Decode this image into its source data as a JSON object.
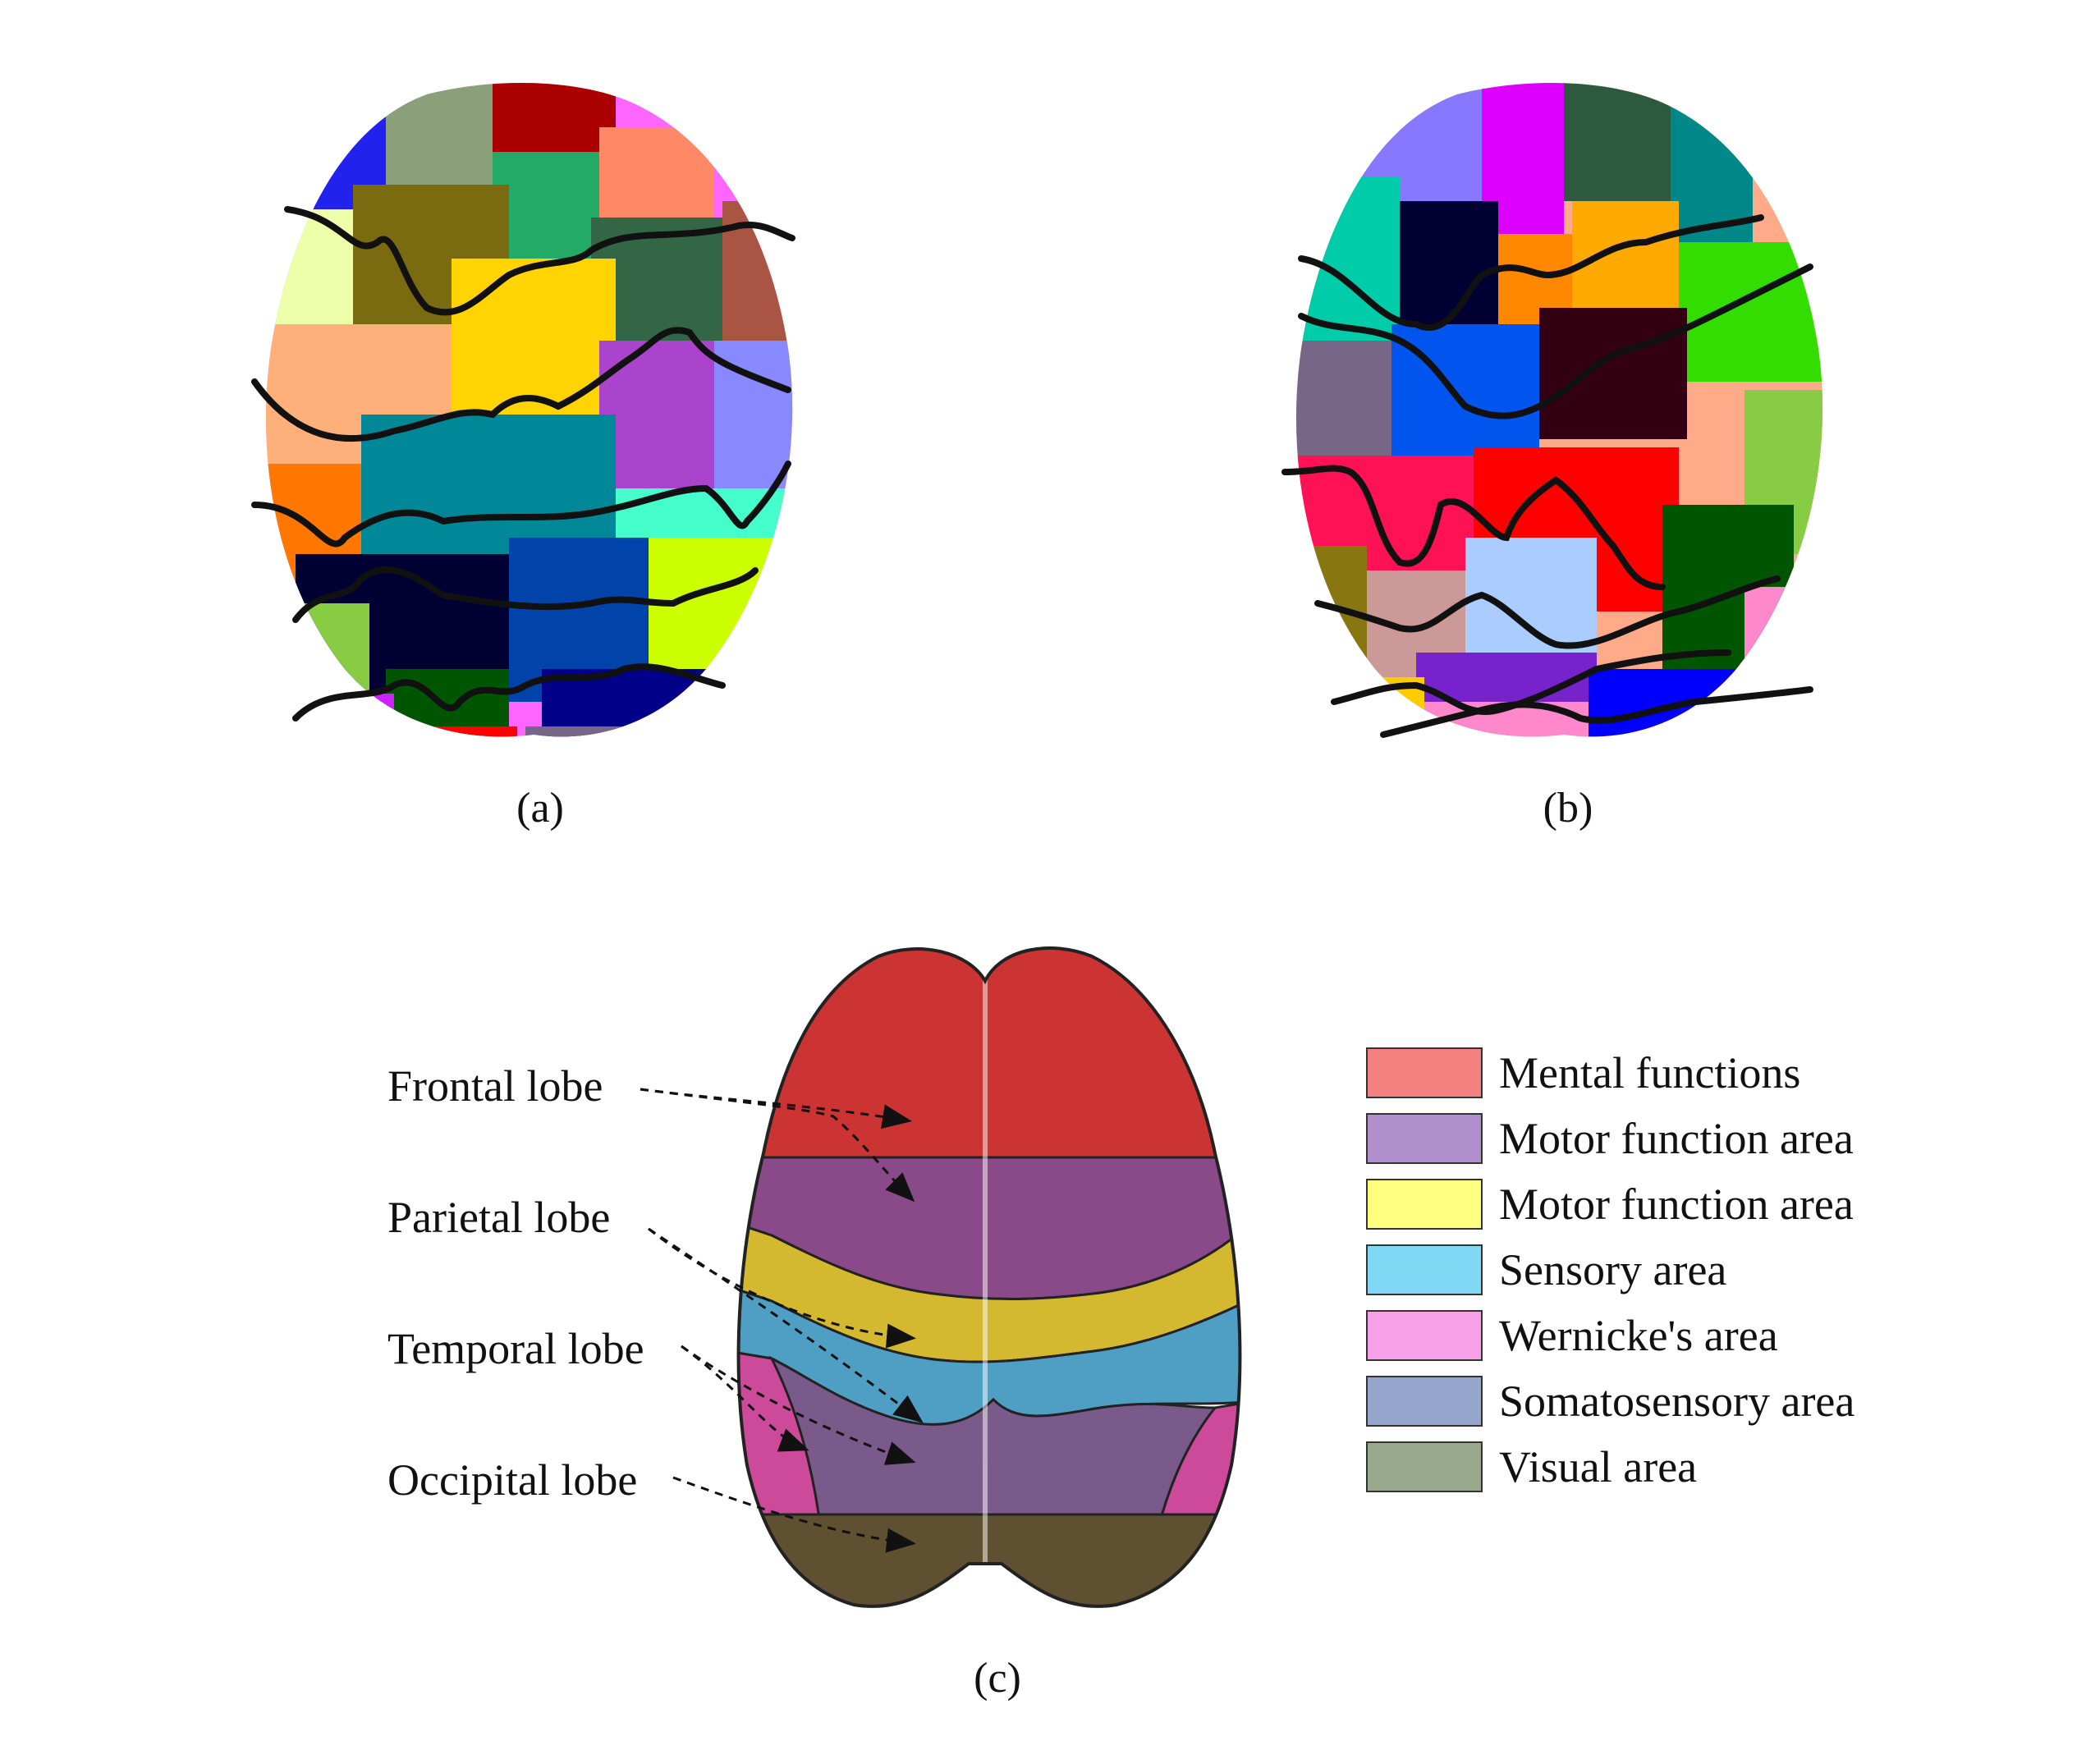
{
  "panels": {
    "a": {
      "caption": "(a)"
    },
    "b": {
      "caption": "(b)"
    },
    "c": {
      "caption": "(c)"
    }
  },
  "lobe_labels": [
    {
      "text": "Frontal lobe"
    },
    {
      "text": "Parietal lobe"
    },
    {
      "text": "Temporal lobe"
    },
    {
      "text": "Occipital lobe"
    }
  ],
  "legend": [
    {
      "label": "Mental functions",
      "color": "#f58080"
    },
    {
      "label": "Motor function area",
      "color": "#b08fcc"
    },
    {
      "label": "Motor function area",
      "color": "#ffff80"
    },
    {
      "label": "Sensory area",
      "color": "#80d8f5"
    },
    {
      "label": "Wernicke's area",
      "color": "#f7a0e8"
    },
    {
      "label": "Somatosensory area",
      "color": "#95a5cc"
    },
    {
      "label": "Visual area",
      "color": "#99aa8c"
    }
  ],
  "brain_colors": {
    "frontal": "#cc3333",
    "parietal": "#8a4a8a",
    "motor_band": "#d4b830",
    "sensory_band": "#4f9fc4",
    "temporal": "#cc4a99",
    "somato": "#7a5a8a",
    "occipital": "#5e5030"
  }
}
